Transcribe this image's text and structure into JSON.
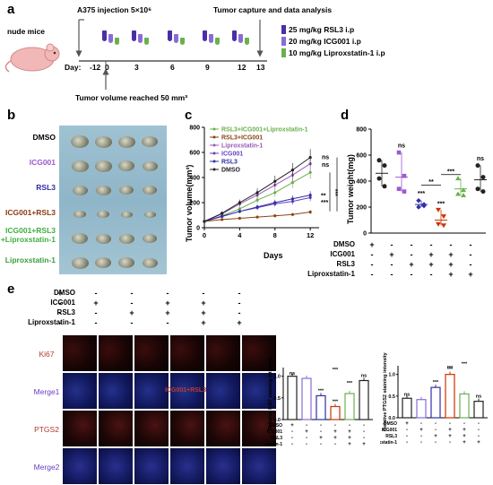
{
  "panels": {
    "a": "a",
    "b": "b",
    "c": "c",
    "d": "d",
    "e": "e"
  },
  "panel_a": {
    "mice_label": "nude mice",
    "injection": "A375 injection 5×10⁶",
    "capture": "Tumor capture and data analysis",
    "volume_reached": "Tumor volume reached 50 mm³",
    "day_prefix": "Day:",
    "days": [
      "-12",
      "0",
      "3",
      "6",
      "9",
      "12",
      "13"
    ],
    "legend": [
      "25 mg/kg RSL3 i.p",
      "20 mg/kg ICG001 i.p",
      "10 mg/kg Liproxstatin-1 i.p"
    ],
    "colors": {
      "rsl3": "#4b2fa5",
      "icg001": "#8a6cd8",
      "lip": "#6ab04c"
    }
  },
  "panel_b": {
    "groups": [
      {
        "label": "DMSO",
        "color": "#000000"
      },
      {
        "label": "ICG001",
        "color": "#9b59d0"
      },
      {
        "label": "RSL3",
        "color": "#2e2ea6"
      },
      {
        "label": "ICG001+RSL3",
        "color": "#8b3a12"
      },
      {
        "label": "ICG001+RSL3\n+Liproxstatin-1",
        "color": "#3fae3f"
      },
      {
        "label": "Liproxstatin-1",
        "color": "#3a9e3a"
      }
    ]
  },
  "chart_data": [
    {
      "type": "line",
      "xlabel": "Days",
      "ylabel": "Tumor volume(mm³)",
      "xlim": [
        0,
        13
      ],
      "ylim": [
        0,
        800
      ],
      "xticks": [
        0,
        4,
        8,
        12
      ],
      "yticks": [
        0,
        200,
        400,
        600,
        800
      ],
      "x": [
        0,
        2,
        4,
        6,
        8,
        10,
        12
      ],
      "series": [
        {
          "name": "RSL3+ICG001+Liproxstatin-1",
          "color": "#6ab04c",
          "values": [
            50,
            95,
            150,
            220,
            280,
            360,
            440
          ]
        },
        {
          "name": "RSL3+ICG001",
          "color": "#8b4513",
          "values": [
            50,
            65,
            75,
            85,
            95,
            105,
            125
          ]
        },
        {
          "name": "Liproxstatin-1",
          "color": "#9b59b6",
          "values": [
            50,
            110,
            190,
            260,
            340,
            420,
            510
          ]
        },
        {
          "name": "ICG001",
          "color": "#6a3fc0",
          "values": [
            50,
            90,
            130,
            160,
            190,
            210,
            240
          ]
        },
        {
          "name": "RSL3",
          "color": "#2f2fa8",
          "values": [
            50,
            90,
            130,
            165,
            200,
            230,
            260
          ]
        },
        {
          "name": "DMSO",
          "color": "#222222",
          "values": [
            50,
            115,
            200,
            280,
            370,
            460,
            560
          ]
        }
      ],
      "annotations": [
        "ns",
        "ns",
        "***",
        "**",
        "***",
        "***"
      ]
    },
    {
      "type": "scatter",
      "ylabel": "Tumor weight(mg)",
      "ylim": [
        0,
        800
      ],
      "yticks": [
        0,
        200,
        400,
        600,
        800
      ],
      "categories": [
        "DMSO",
        "ICG001",
        "RSL3",
        "ICG001+RSL3",
        "ICG001+RSL3+Liproxstatin-1",
        "Liproxstatin-1"
      ],
      "colors": [
        "#222222",
        "#9b59d0",
        "#2f2fa8",
        "#cc3300",
        "#6ab04c",
        "#222222"
      ],
      "means": [
        460,
        430,
        220,
        100,
        340,
        410
      ],
      "points": [
        [
          560,
          520,
          420,
          360
        ],
        [
          620,
          440,
          340,
          320
        ],
        [
          250,
          220,
          200,
          210
        ],
        [
          180,
          130,
          70,
          60
        ],
        [
          420,
          330,
          300,
          290
        ],
        [
          520,
          430,
          340,
          320
        ]
      ],
      "annotations": [
        "ns",
        "ns",
        "***",
        "***",
        "**",
        "***"
      ]
    },
    {
      "type": "bar",
      "ylabel": "Relative Ki67 staining intensity",
      "categories": [
        "DMSO",
        "ICG001",
        "RSL3",
        "ICG001+RSL3",
        "ICG001+RSL3+Liproxstatin-1",
        "Liproxstatin-1"
      ],
      "values": [
        1.0,
        0.95,
        0.55,
        0.3,
        0.6,
        0.9
      ],
      "colors": [
        "#222222",
        "#8a6cd8",
        "#2f2fa8",
        "#cc3300",
        "#6ab04c",
        "#222222"
      ],
      "ylim": [
        0,
        1.2
      ],
      "annotations": [
        "ns",
        "***",
        "***",
        "***",
        "***",
        "ns"
      ]
    },
    {
      "type": "bar",
      "ylabel": "Relative PTGS2 staining intensity",
      "categories": [
        "DMSO",
        "ICG001",
        "RSL3",
        "ICG001+RSL3",
        "ICG001+RSL3+Liproxstatin-1",
        "Liproxstatin-1"
      ],
      "values": [
        0.45,
        0.42,
        0.7,
        1.0,
        0.55,
        0.38
      ],
      "colors": [
        "#222222",
        "#8a6cd8",
        "#2f2fa8",
        "#cc3300",
        "#6ab04c",
        "#222222"
      ],
      "ylim": [
        0,
        1.2
      ],
      "annotations": [
        "ns",
        "***",
        "***",
        "***",
        "***",
        "ns"
      ]
    }
  ],
  "design_rows": {
    "labels": [
      "DMSO",
      "ICG001",
      "RSL3",
      "Liproxstatin-1"
    ],
    "signs": [
      [
        "+",
        "-",
        "-",
        "-",
        "-",
        "-"
      ],
      [
        "-",
        "+",
        "-",
        "+",
        "+",
        "-"
      ],
      [
        "-",
        "-",
        "+",
        "+",
        "+",
        "-"
      ],
      [
        "-",
        "-",
        "-",
        "-",
        "+",
        "+"
      ]
    ]
  },
  "panel_e": {
    "rows": [
      {
        "label": "Ki67",
        "color": "#b03a2e"
      },
      {
        "label": "Merge1",
        "color": "#6a3fc0"
      },
      {
        "label": "PTGS2",
        "color": "#b03a2e"
      },
      {
        "label": "Merge2",
        "color": "#6a3fc0"
      }
    ],
    "overlay": "ICG001+RSL3"
  }
}
